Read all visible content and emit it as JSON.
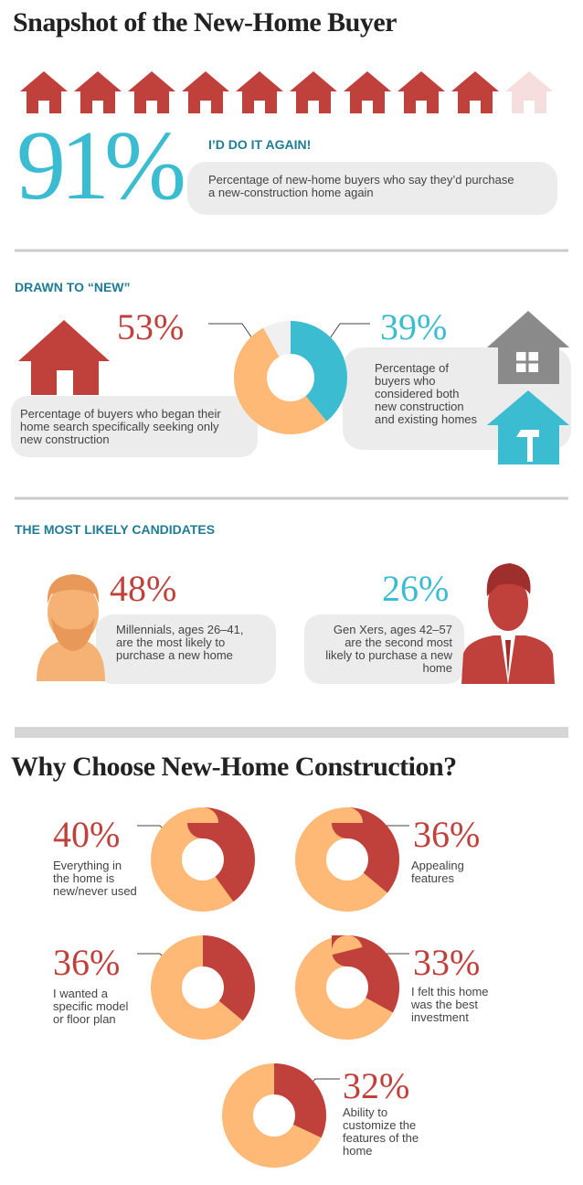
{
  "header": {
    "title": "Snapshot of the New-Home Buyer"
  },
  "again": {
    "value": 91,
    "label": "91%",
    "heading": "I’D DO IT AGAIN!",
    "text": "Percentage of new-home buyers who say they’d purchase a new-construction home again"
  },
  "drawn": {
    "heading": "DRAWN TO “NEW”",
    "new_only": {
      "value": 53,
      "label": "53%",
      "text": "Percentage of buyers who began their home search specifically seeking only new construction"
    },
    "both": {
      "value": 39,
      "label": "39%",
      "text": "Percentage of buyers who considered both new construction and existing homes"
    }
  },
  "candidates": {
    "heading": "THE MOST LIKELY CANDIDATES",
    "millennials": {
      "label": "48%",
      "text": "Millennials, ages 26–41, are the most likely to purchase a new home"
    },
    "genx": {
      "label": "26%",
      "text": "Gen Xers, ages 42–57 are the second most likely to purchase a new home"
    }
  },
  "why": {
    "title": "Why Choose New-Home Construction?",
    "items": [
      {
        "value": 40,
        "label": "40%",
        "text": "Everything in the home is new/never used"
      },
      {
        "value": 36,
        "label": "36%",
        "text": "Appealing features"
      },
      {
        "value": 36,
        "label": "36%",
        "text": "I wanted a specific model or floor plan"
      },
      {
        "value": 33,
        "label": "33%",
        "text": "I felt this home was the best investment"
      },
      {
        "value": 32,
        "label": "32%",
        "text": "Ability to customize the features of the home"
      }
    ]
  }
}
